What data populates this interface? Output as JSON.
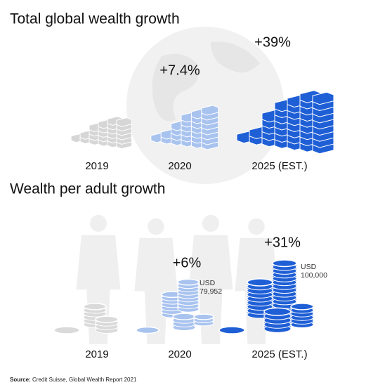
{
  "sections": [
    {
      "title": "Total global wealth growth",
      "items": [
        {
          "label": "2019"
        },
        {
          "label": "2020",
          "change": "+7.4%"
        },
        {
          "label": "2025 (EST.)",
          "change": "+39%"
        }
      ]
    },
    {
      "title": "Wealth per adult growth",
      "items": [
        {
          "label": "2019"
        },
        {
          "label": "2020",
          "change": "+6%",
          "note": [
            "USD",
            "79,952"
          ]
        },
        {
          "label": "2025 (EST.)",
          "change": "+31%",
          "note": [
            "USD",
            "100,000"
          ]
        }
      ]
    }
  ],
  "source": {
    "label": "Source:",
    "text": "Credit Suisse, Global Wealth Report 2021"
  }
}
